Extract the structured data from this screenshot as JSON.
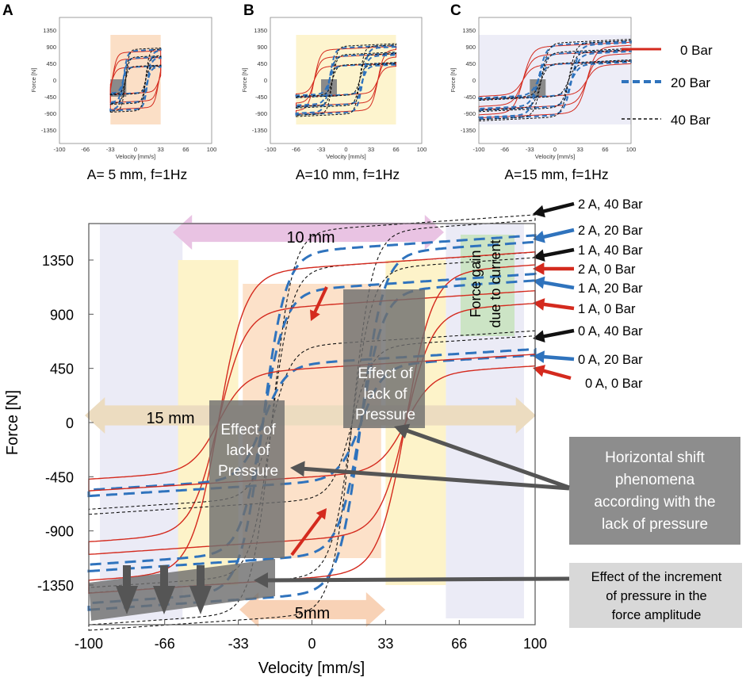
{
  "colors": {
    "red": "#d42a1e",
    "blue": "#2f73bd",
    "black": "#111111",
    "gray_box": "#6f6f6f",
    "gray_callout": "#8d8d8d",
    "gray_callout_light": "#d8d8d8",
    "band_lavender": "#ebebf6",
    "band_yellow": "#fdf3c9",
    "band_orange": "#fbdcc0",
    "band_green": "#c9e3c0",
    "arrow_pink": "#e9c3e3",
    "arrow_tan": "#ecdcc0",
    "arrow_peach": "#f8d2b6"
  },
  "panels": [
    {
      "letter": "A",
      "caption": "A=  5 mm, f=1Hz"
    },
    {
      "letter": "B",
      "caption": "A=10 mm, f=1Hz"
    },
    {
      "letter": "C",
      "caption": "A=15 mm, f=1Hz"
    }
  ],
  "small_axes": {
    "xlabel": "Velocity [mm/s]",
    "ylabel": "Force [N]",
    "x_ticks": [
      "-100",
      "-66",
      "-33",
      "0",
      "33",
      "66",
      "100"
    ],
    "y_ticks": [
      "1350",
      "900",
      "450",
      "0",
      "-450",
      "-900",
      "-1350"
    ]
  },
  "legend": [
    {
      "label": "0 Bar",
      "style": "solid",
      "color": "red"
    },
    {
      "label": "20 Bar",
      "style": "dashed",
      "color": "blue"
    },
    {
      "label": "40 Bar",
      "style": "dotted",
      "color": "black"
    }
  ],
  "chart_data": {
    "type": "line",
    "title": "",
    "xlabel": "Velocity [mm/s]",
    "ylabel": "Force [N]",
    "xlim": [
      -100,
      100
    ],
    "ylim": [
      -1700,
      1700
    ],
    "x_ticks": [
      -100,
      -66,
      -33,
      0,
      33,
      66,
      100
    ],
    "x_tick_labels": [
      "-100",
      "-66",
      "-33",
      "0",
      "33",
      "66",
      "100"
    ],
    "y_ticks": [
      1350,
      900,
      450,
      0,
      -450,
      -900,
      -1350
    ],
    "y_tick_labels": [
      "1350",
      "900",
      "450",
      "0",
      "-450",
      "-900",
      "-1350"
    ],
    "series_peak_force": [
      {
        "current": "2 A",
        "pressure": "40 Bar",
        "peak_force": 1680
      },
      {
        "current": "2 A",
        "pressure": "20 Bar",
        "peak_force": 1500
      },
      {
        "current": "1 A",
        "pressure": "40 Bar",
        "peak_force": 1370
      },
      {
        "current": "2 A",
        "pressure": "0 Bar",
        "peak_force": 1310
      },
      {
        "current": "1 A",
        "pressure": "20 Bar",
        "peak_force": 1180
      },
      {
        "current": "1 A",
        "pressure": "0 Bar",
        "peak_force": 990
      },
      {
        "current": "0 A",
        "pressure": "40 Bar",
        "peak_force": 720
      },
      {
        "current": "0 A",
        "pressure": "20 Bar",
        "peak_force": 560
      },
      {
        "current": "0 A",
        "pressure": "0 Bar",
        "peak_force": 470
      }
    ],
    "series_labels": [
      {
        "text": "2 A, 40 Bar",
        "color": "black"
      },
      {
        "text": "2 A, 20 Bar",
        "color": "blue"
      },
      {
        "text": "1 A, 40 Bar",
        "color": "black"
      },
      {
        "text": "2 A,   0 Bar",
        "color": "red"
      },
      {
        "text": "1 A, 20 Bar",
        "color": "blue"
      },
      {
        "text": "1 A,   0 Bar",
        "color": "red"
      },
      {
        "text": "0 A, 40 Bar",
        "color": "black"
      },
      {
        "text": "0 A, 20 Bar",
        "color": "blue"
      },
      {
        "text": "0 A,   0 Bar",
        "color": "red"
      }
    ],
    "annotations": {
      "range_10": "10 mm",
      "range_15": "15 mm",
      "range_5": "5mm",
      "force_gain": "Force gain due to current",
      "lack_pressure": "Effect of lack of Pressure",
      "horizontal_shift": "Horizontal shift phenomena according with the lack of pressure",
      "increment_pressure": "Effect of the increment of pressure in the force amplitude"
    }
  }
}
